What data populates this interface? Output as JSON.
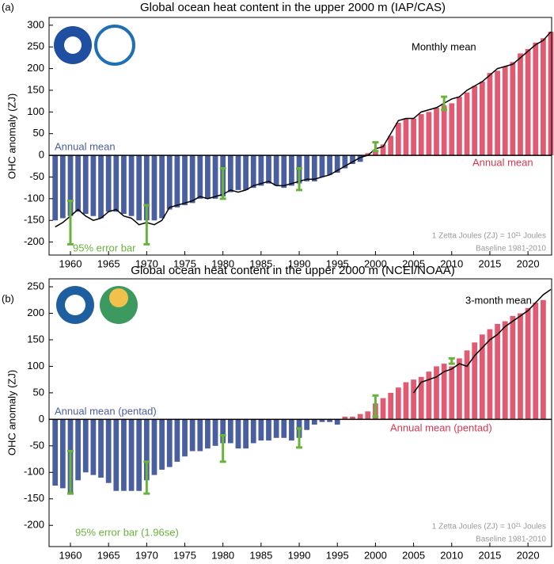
{
  "chart_data": [
    {
      "type": "bar",
      "panel_label": "(a)",
      "title": "Global ocean heat content in the upper 2000 m (IAP/CAS)",
      "ylabel": "OHC anomaly (ZJ)",
      "xlim": [
        1957.2,
        2023.1
      ],
      "xticks": [
        1960,
        1965,
        1970,
        1975,
        1980,
        1985,
        1990,
        1995,
        2000,
        2005,
        2010,
        2015,
        2020
      ],
      "ylim": [
        -230,
        318
      ],
      "yticks": [
        -200,
        -150,
        -100,
        -50,
        0,
        50,
        100,
        150,
        200,
        250,
        300
      ],
      "series": [
        {
          "name": "Annual mean",
          "type": "bar",
          "color": "#4a5fa0",
          "x": [
            1958,
            1959,
            1960,
            1961,
            1962,
            1963,
            1964,
            1965,
            1966,
            1967,
            1968,
            1969,
            1970,
            1971,
            1972,
            1973,
            1974,
            1975,
            1976,
            1977,
            1978,
            1979,
            1980,
            1981,
            1982,
            1983,
            1984,
            1985,
            1986,
            1987,
            1988,
            1989,
            1990,
            1991,
            1992,
            1993,
            1994,
            1995,
            1996,
            1997,
            1998
          ],
          "values": [
            -150,
            -145,
            -140,
            -130,
            -135,
            -140,
            -145,
            -130,
            -130,
            -135,
            -140,
            -150,
            -150,
            -150,
            -145,
            -125,
            -120,
            -115,
            -110,
            -100,
            -100,
            -100,
            -95,
            -85,
            -80,
            -80,
            -75,
            -70,
            -65,
            -70,
            -75,
            -70,
            -65,
            -60,
            -60,
            -50,
            -45,
            -40,
            -30,
            -20,
            -15
          ]
        },
        {
          "name": "Annual mean",
          "type": "bar",
          "color": "#e05a72",
          "x": [
            1999,
            2000,
            2001,
            2002,
            2003,
            2004,
            2005,
            2006,
            2007,
            2008,
            2009,
            2010,
            2011,
            2012,
            2013,
            2014,
            2015,
            2016,
            2017,
            2018,
            2019,
            2020,
            2021,
            2022,
            2023
          ],
          "values": [
            5,
            10,
            25,
            45,
            75,
            85,
            85,
            95,
            100,
            110,
            115,
            120,
            135,
            145,
            160,
            170,
            190,
            195,
            205,
            215,
            235,
            245,
            260,
            270,
            285
          ]
        },
        {
          "name": "Monthly mean",
          "type": "line",
          "color": "#000000",
          "x": [
            1958,
            1959,
            1960,
            1961,
            1962,
            1963,
            1964,
            1965,
            1966,
            1967,
            1968,
            1969,
            1970,
            1971,
            1972,
            1973,
            1974,
            1975,
            1976,
            1977,
            1978,
            1979,
            1980,
            1981,
            1982,
            1983,
            1984,
            1985,
            1986,
            1987,
            1988,
            1989,
            1990,
            1991,
            1992,
            1993,
            1994,
            1995,
            1996,
            1997,
            1998,
            1999,
            2000,
            2001,
            2002,
            2003,
            2004,
            2005,
            2006,
            2007,
            2008,
            2009,
            2010,
            2011,
            2012,
            2013,
            2014,
            2015,
            2016,
            2017,
            2018,
            2019,
            2020,
            2021,
            2022,
            2023
          ],
          "values": [
            -165,
            -155,
            -140,
            -125,
            -140,
            -150,
            -145,
            -130,
            -125,
            -140,
            -145,
            -160,
            -155,
            -160,
            -150,
            -120,
            -115,
            -110,
            -105,
            -95,
            -100,
            -95,
            -90,
            -80,
            -85,
            -80,
            -70,
            -65,
            -60,
            -70,
            -70,
            -65,
            -60,
            -55,
            -55,
            -50,
            -45,
            -35,
            -25,
            -15,
            -5,
            0,
            15,
            20,
            50,
            80,
            85,
            85,
            100,
            105,
            110,
            120,
            130,
            135,
            150,
            160,
            170,
            185,
            200,
            205,
            210,
            225,
            240,
            255,
            265,
            285
          ]
        }
      ],
      "error_bars": {
        "name": "95% error bar",
        "color": "#6ab23e",
        "x": [
          1960,
          1970,
          1980,
          1990,
          2000,
          2009
        ],
        "values": [
          -155,
          -160,
          -65,
          -55,
          20,
          120
        ],
        "errors": [
          50,
          45,
          35,
          25,
          10,
          15
        ]
      },
      "notes": [
        "1 Zetta Joules (ZJ) = 10²¹ Joules",
        "Baseline 1981-2010"
      ]
    },
    {
      "type": "bar",
      "panel_label": "(b)",
      "title": "Global ocean heat content in the upper 2000 m (NCEI/NOAA)",
      "ylabel": "OHC anomaly (ZJ)",
      "xlim": [
        1957.2,
        2023.1
      ],
      "xticks": [
        1960,
        1965,
        1970,
        1975,
        1980,
        1985,
        1990,
        1995,
        2000,
        2005,
        2010,
        2015,
        2020
      ],
      "ylim": [
        -240,
        265
      ],
      "yticks": [
        -200,
        -150,
        -100,
        -50,
        0,
        50,
        100,
        150,
        200,
        250
      ],
      "series": [
        {
          "name": "Annual mean (pentad)",
          "type": "bar",
          "color": "#4a5fa0",
          "x": [
            1958,
            1959,
            1960,
            1961,
            1962,
            1963,
            1964,
            1965,
            1966,
            1967,
            1968,
            1969,
            1970,
            1971,
            1972,
            1973,
            1974,
            1975,
            1976,
            1977,
            1978,
            1979,
            1980,
            1981,
            1982,
            1983,
            1984,
            1985,
            1986,
            1987,
            1988,
            1989,
            1990,
            1991,
            1992,
            1993,
            1994,
            1995
          ],
          "values": [
            -125,
            -130,
            -140,
            -115,
            -100,
            -105,
            -110,
            -120,
            -135,
            -135,
            -135,
            -135,
            -115,
            -105,
            -95,
            -90,
            -80,
            -70,
            -60,
            -60,
            -55,
            -50,
            -45,
            -45,
            -55,
            -55,
            -45,
            -40,
            -40,
            -35,
            -35,
            -40,
            -35,
            -20,
            -10,
            -5,
            -5,
            -10
          ]
        },
        {
          "name": "Annual mean (pentad)",
          "type": "bar",
          "color": "#e05a72",
          "x": [
            1996,
            1997,
            1998,
            1999,
            2000,
            2001,
            2002,
            2003,
            2004,
            2005,
            2006,
            2007,
            2008,
            2009,
            2010,
            2011,
            2012,
            2013,
            2014,
            2015,
            2016,
            2017,
            2018,
            2019,
            2020,
            2021,
            2022
          ],
          "values": [
            5,
            5,
            10,
            15,
            30,
            40,
            50,
            60,
            70,
            75,
            80,
            90,
            100,
            105,
            100,
            115,
            130,
            145,
            160,
            170,
            180,
            185,
            195,
            200,
            210,
            220,
            225
          ]
        },
        {
          "name": "3-month mean",
          "type": "line",
          "color": "#000000",
          "x": [
            2005,
            2006,
            2007,
            2008,
            2009,
            2010,
            2011,
            2012,
            2013,
            2014,
            2015,
            2016,
            2017,
            2018,
            2019,
            2020,
            2021,
            2022,
            2023
          ],
          "values": [
            50,
            70,
            75,
            80,
            90,
            95,
            105,
            100,
            120,
            135,
            150,
            160,
            175,
            185,
            195,
            205,
            220,
            235,
            245
          ]
        }
      ],
      "error_bars": {
        "name": "95% error bar (1.96se)",
        "color": "#6ab23e",
        "x": [
          1960,
          1970,
          1980,
          1990,
          2000,
          2010
        ],
        "values": [
          -100,
          -110,
          -55,
          -35,
          25,
          110
        ],
        "errors": [
          40,
          30,
          25,
          18,
          20,
          5
        ]
      },
      "notes": [
        "1 Zetta Joules (ZJ) = 10²¹ Joules",
        "Baseline 1981-2010"
      ]
    }
  ]
}
